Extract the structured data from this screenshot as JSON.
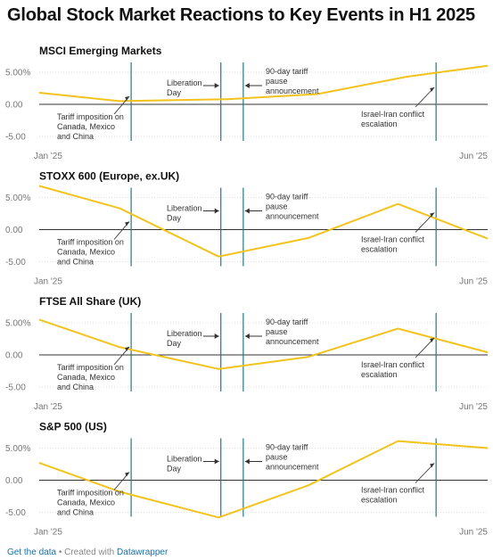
{
  "title": "Global Stock Market Reactions to Key Events in H1 2025",
  "footer": {
    "get_data": "Get the data",
    "separator": " • Created with ",
    "tool": "Datawrapper"
  },
  "colors": {
    "line": "#f2c31d",
    "event_line": "#1f7a8c",
    "zero_line": "#333333",
    "grid": "#dddddd",
    "tick_text": "#777777",
    "annotation_text": "#333333"
  },
  "chart_data": [
    {
      "type": "line",
      "title": "MSCI Emerging Markets",
      "x": [
        0,
        0.18,
        0.42,
        0.62,
        0.82,
        1.0
      ],
      "values": [
        1.8,
        0.5,
        0.8,
        1.6,
        4.3,
        6.0
      ],
      "ylim": [
        -5,
        6.5
      ],
      "yticks": [
        5,
        0,
        -5
      ],
      "yticklabels": [
        "5.00%",
        "0.00",
        "-5.00"
      ],
      "xticklabels": [
        "Jan '25",
        "Jun '25"
      ]
    },
    {
      "type": "line",
      "title": "STOXX 600 (Europe, ex.UK)",
      "x": [
        0,
        0.18,
        0.4,
        0.6,
        0.8,
        1.0
      ],
      "values": [
        6.8,
        3.3,
        -4.2,
        -1.3,
        4.0,
        -1.4
      ],
      "ylim": [
        -5,
        6.5
      ],
      "yticks": [
        5,
        0,
        -5
      ],
      "yticklabels": [
        "5.00%",
        "0.00",
        "-5.00"
      ],
      "xticklabels": [
        "Jan '25",
        "Jun '25"
      ]
    },
    {
      "type": "line",
      "title": "FTSE All Share (UK)",
      "x": [
        0,
        0.18,
        0.4,
        0.6,
        0.8,
        1.0
      ],
      "values": [
        5.5,
        1.2,
        -2.2,
        -0.3,
        4.1,
        0.4
      ],
      "ylim": [
        -5,
        6.5
      ],
      "yticks": [
        5,
        0,
        -5
      ],
      "yticklabels": [
        "5.00%",
        "0.00",
        "-5.00"
      ],
      "xticklabels": [
        "Jan '25",
        "Jun '25"
      ]
    },
    {
      "type": "line",
      "title": "S&P 500 (US)",
      "x": [
        0,
        0.18,
        0.4,
        0.6,
        0.8,
        1.0
      ],
      "values": [
        2.7,
        -1.8,
        -5.8,
        -0.8,
        6.1,
        5.0
      ],
      "ylim": [
        -6.5,
        6.5
      ],
      "yticks": [
        5,
        0,
        -5
      ],
      "yticklabels": [
        "5.00%",
        "0.00",
        "-5.00"
      ],
      "xticklabels": [
        "Jan '25",
        "Jun '25"
      ]
    }
  ],
  "events": [
    {
      "x": 0.205,
      "label": [
        "Tariff imposition on",
        "Canada, Mexico",
        "and China"
      ]
    },
    {
      "x": 0.405,
      "label": [
        "Liberation",
        "Day"
      ]
    },
    {
      "x": 0.455,
      "label": [
        "90-day tariff",
        "pause",
        "announcement"
      ]
    },
    {
      "x": 0.885,
      "label": [
        "Israel-Iran conflict",
        "escalation"
      ]
    }
  ]
}
